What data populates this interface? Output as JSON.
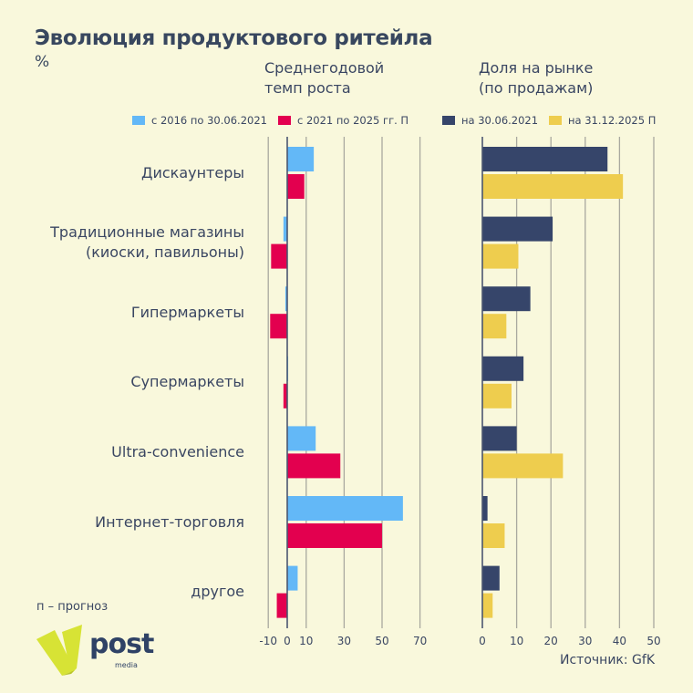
{
  "header": {
    "title": "Эволюция продуктового ритейла",
    "unit": "%",
    "subtitle_left_1": "Среднегодовой",
    "subtitle_left_2": "темп роста",
    "subtitle_right_1": "Доля на рынке",
    "subtitle_right_2": "(по продажам)"
  },
  "footer": {
    "footnote": "п – прогноз",
    "source": "Источник: GfK",
    "logo_text": "post",
    "logo_sub": "media"
  },
  "colors": {
    "background": "#f9f8dc",
    "growth_2016_2021": "#63b8f7",
    "growth_2021_2025": "#e3004f",
    "share_2021": "#36456a",
    "share_2025": "#eecd4e",
    "grid": "#a9a99f",
    "axis": "#4a5670",
    "logo_green": "#d7e335"
  },
  "chart_data": [
    {
      "type": "bar",
      "orientation": "horizontal",
      "title": "Среднегодовой темп роста",
      "categories": [
        "Дискаунтеры",
        "Традиционные магазины (киоски, павильоны)",
        "Гипермаркеты",
        "Супермаркеты",
        "Ultra-convenience",
        "Интернет-торговля",
        "другое"
      ],
      "series": [
        {
          "name": "с 2016 по 30.06.2021",
          "values": [
            14,
            -2,
            -1,
            0.5,
            15,
            61,
            5.5
          ]
        },
        {
          "name": "с 2021 по 2025 гг. П",
          "values": [
            9,
            -8.5,
            -9,
            -2,
            28,
            50,
            -5.5
          ]
        }
      ],
      "xlim": [
        -10,
        70
      ],
      "xticks": [
        -10,
        0,
        10,
        30,
        50,
        70
      ],
      "grid": true,
      "legend": "top"
    },
    {
      "type": "bar",
      "orientation": "horizontal",
      "title": "Доля на рынке (по продажам)",
      "categories": [
        "Дискаунтеры",
        "Традиционные магазины (киоски, павильоны)",
        "Гипермаркеты",
        "Супермаркеты",
        "Ultra-convenience",
        "Интернет-торговля",
        "другое"
      ],
      "series": [
        {
          "name": "на 30.06.2021",
          "values": [
            36.5,
            20.5,
            14,
            12,
            10,
            1.5,
            5
          ]
        },
        {
          "name": "на 31.12.2025 П",
          "values": [
            41,
            10.5,
            7,
            8.5,
            23.5,
            6.5,
            3
          ]
        }
      ],
      "xlim": [
        0,
        50
      ],
      "xticks": [
        0,
        10,
        20,
        30,
        40,
        50
      ],
      "grid": true,
      "legend": "top"
    }
  ],
  "categories_display": [
    [
      "Дискаунтеры"
    ],
    [
      "Традиционные магазины",
      "(киоски, павильоны)"
    ],
    [
      "Гипермаркеты"
    ],
    [
      "Супермаркеты"
    ],
    [
      "Ultra-convenience"
    ],
    [
      "Интернет-торговля"
    ],
    [
      "другое"
    ]
  ]
}
